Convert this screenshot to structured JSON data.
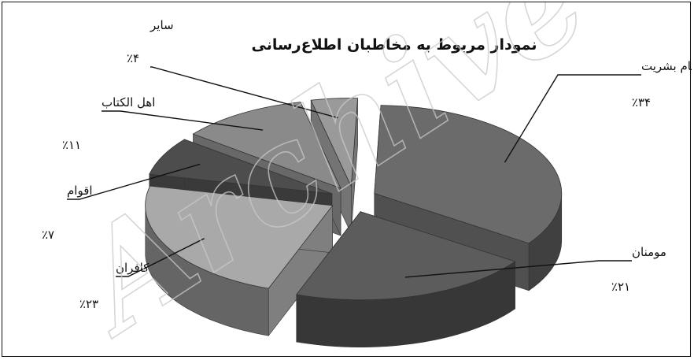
{
  "watermark": "Archive of",
  "chart_data": {
    "type": "pie",
    "title": "نمودار مربوط به مخاطبان اطلاع‌رسانی",
    "slices": [
      {
        "label": "تمام بشریت",
        "value": 34,
        "value_label": "٪۳۴",
        "color": "#6b6b6b"
      },
      {
        "label": "مومنان",
        "value": 21,
        "value_label": "٪۲۱",
        "color": "#5c5c5c"
      },
      {
        "label": "کافران",
        "value": 23,
        "value_label": "٪۲۳",
        "color": "#a9a9a9"
      },
      {
        "label": "اقوام",
        "value": 7,
        "value_label": "٪۷",
        "color": "#4d4d4d"
      },
      {
        "label": "اهل الکتاب",
        "value": 11,
        "value_label": "٪۱۱",
        "color": "#8a8a8a"
      },
      {
        "label": "سایر",
        "value": 4,
        "value_label": "٪۴",
        "color": "#9a9a9a"
      }
    ]
  }
}
